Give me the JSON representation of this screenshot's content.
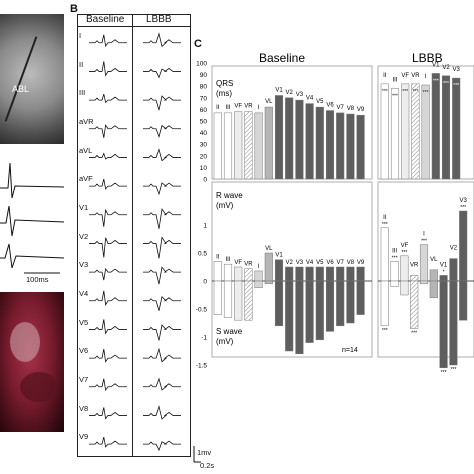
{
  "panels": {
    "b": "B",
    "c": "C"
  },
  "panel_a": {
    "fluoro_label": "ABL",
    "scale_label": "100ms"
  },
  "panel_b": {
    "col_headers": [
      "Baseline",
      "LBBB"
    ],
    "leads": [
      "I",
      "II",
      "III",
      "aVR",
      "aVL",
      "aVF",
      "V1",
      "V2",
      "V3",
      "V4",
      "V5",
      "V6",
      "V7",
      "V8",
      "V9"
    ],
    "scale_mv": "1mv",
    "scale_s": "0.2s"
  },
  "chart_data": [
    {
      "type": "bar",
      "title": "Baseline",
      "ylabel": "QRS (ms)",
      "ylabel_line1": "QRS",
      "ylabel_line2": "(ms)",
      "ylim": [
        0,
        100
      ],
      "yticks": [
        "0",
        "10",
        "20",
        "30",
        "40",
        "50",
        "60",
        "70",
        "80",
        "90",
        "100"
      ],
      "categories": [
        "II",
        "III",
        "VF",
        "VR",
        "I",
        "VL",
        "V1",
        "V2",
        "V3",
        "V4",
        "V5",
        "V6",
        "V7",
        "V8",
        "V9"
      ],
      "values": [
        57,
        57,
        58,
        58,
        57,
        62,
        72,
        70,
        68,
        65,
        62,
        59,
        57,
        56,
        55
      ]
    },
    {
      "type": "bar",
      "title": "LBBB",
      "ylabel": "QRS (ms)",
      "ylim": [
        0,
        100
      ],
      "categories": [
        "II",
        "III",
        "VF",
        "VR",
        "I",
        "V1",
        "V2",
        "V3"
      ],
      "values": [
        82,
        78,
        82,
        82,
        81,
        91,
        89,
        87
      ],
      "markers": [
        "***",
        "***",
        "***",
        "***",
        "***",
        "***",
        "***",
        "***"
      ]
    },
    {
      "type": "bar",
      "ylabel_top": "R wave (mV)",
      "ylabel_top_line1": "R wave",
      "ylabel_top_line2": "(mV)",
      "ylabel_bottom": "S wave (mV)",
      "ylabel_bottom_line1": "S wave",
      "ylabel_bottom_line2": "(mV)",
      "ylim": [
        -1.5,
        1.0
      ],
      "yticks": [
        "1",
        "0.5",
        "0",
        "-0.5",
        "-1",
        "-1.5"
      ],
      "n_label": "n=14",
      "categories": [
        "II",
        "III",
        "VF",
        "VR",
        "I",
        "VL",
        "V1",
        "V2",
        "V3",
        "V4",
        "V5",
        "V6",
        "V7",
        "V8",
        "V9"
      ],
      "r_values": [
        0.35,
        0.3,
        0.25,
        0.22,
        0.18,
        0.5,
        0.38,
        0.25,
        0.25,
        0.25,
        0.25,
        0.25,
        0.25,
        0.25,
        0.25
      ],
      "s_values": [
        -0.6,
        -0.65,
        -0.7,
        -0.7,
        -0.12,
        -0.05,
        -0.8,
        -1.25,
        -1.3,
        -1.1,
        -1.05,
        -0.9,
        -0.8,
        -0.75,
        -0.6
      ]
    },
    {
      "type": "bar",
      "categories": [
        "II",
        "III",
        "VF",
        "VR",
        "I",
        "VL",
        "V1",
        "V2",
        "V3"
      ],
      "r_values": [
        0.95,
        0.35,
        0.45,
        0.1,
        0.65,
        0.2,
        0.1,
        0.4,
        1.25
      ],
      "s_values": [
        -0.8,
        -0.1,
        -0.25,
        -0.85,
        -0.05,
        -0.3,
        -1.55,
        -1.5,
        -0.7
      ],
      "r_markers": [
        "***",
        "***",
        "***",
        "",
        "***",
        "",
        "*",
        "",
        "***"
      ],
      "s_markers": [
        "***",
        "",
        "",
        "***",
        "",
        "",
        "***",
        "***",
        ""
      ]
    }
  ]
}
